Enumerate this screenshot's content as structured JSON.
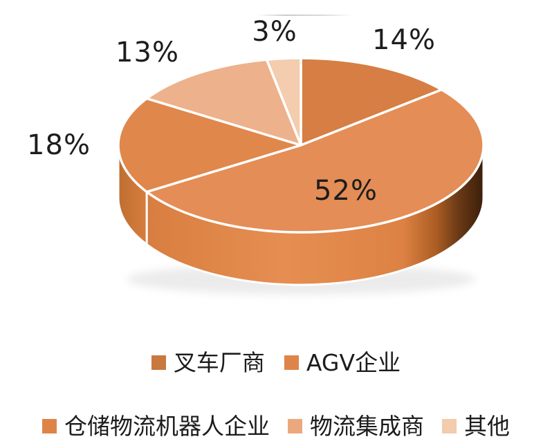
{
  "chart_data": {
    "type": "pie",
    "style": "3d",
    "title": "",
    "categories": [
      "叉车厂商",
      "AGV企业",
      "仓储物流机器人企业",
      "物流集成商",
      "其他"
    ],
    "values": [
      14,
      52,
      18,
      13,
      3
    ],
    "unit": "%",
    "start_angle": "top",
    "direction": "clockwise",
    "legend_position": "bottom",
    "data_labels": [
      "14%",
      "52%",
      "18%",
      "13%",
      "3%"
    ],
    "slice_colors": [
      "#D67E43",
      "#E48D56",
      "#E0874B",
      "#EDB18B",
      "#F4CCAE"
    ],
    "side_wall_gradient": [
      {
        "offset": "0%",
        "color": "#BF6E31"
      },
      {
        "offset": "8%",
        "color": "#D87E40"
      },
      {
        "offset": "45%",
        "color": "#E68E52"
      },
      {
        "offset": "78%",
        "color": "#DD8244"
      },
      {
        "offset": "87%",
        "color": "#AC5D23"
      },
      {
        "offset": "93%",
        "color": "#6B3A16"
      },
      {
        "offset": "100%",
        "color": "#3B1F0A"
      }
    ]
  },
  "legend": {
    "rows": [
      [
        {
          "label": "叉车厂商",
          "color": "#C9783F"
        },
        {
          "label": "AGV企业",
          "color": "#DF8449"
        }
      ],
      [
        {
          "label": "仓储物流机器人企业",
          "color": "#DF8449"
        },
        {
          "label": "物流集成商",
          "color": "#EBA87D"
        },
        {
          "label": "其他",
          "color": "#F3CBAD"
        }
      ]
    ]
  }
}
